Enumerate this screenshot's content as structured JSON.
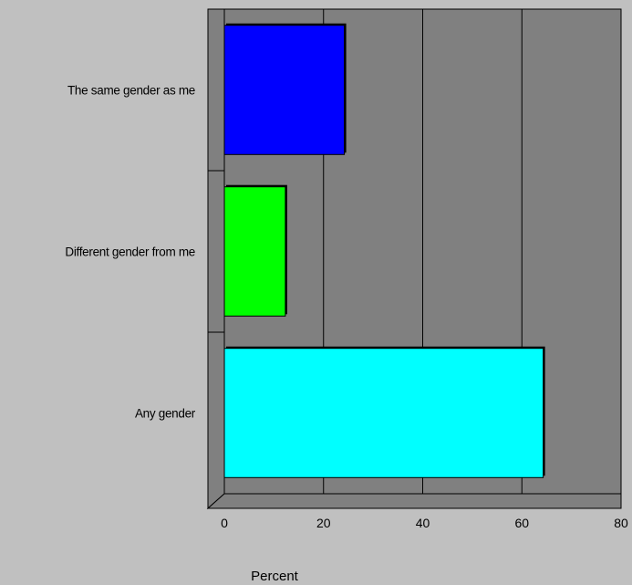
{
  "chart_data": {
    "type": "bar",
    "orientation": "horizontal",
    "categories": [
      "The same gender as me",
      "Different gender from me",
      "Any gender"
    ],
    "values": [
      24.2,
      12.3,
      64.3
    ],
    "colors": [
      "#0000ff",
      "#00ff00",
      "#00ffff"
    ],
    "xlabel": "Percent",
    "xlim": [
      0,
      80
    ],
    "xticks": [
      0,
      20,
      40,
      60,
      80
    ],
    "grid": "vertical",
    "plot_background": "#808080"
  }
}
